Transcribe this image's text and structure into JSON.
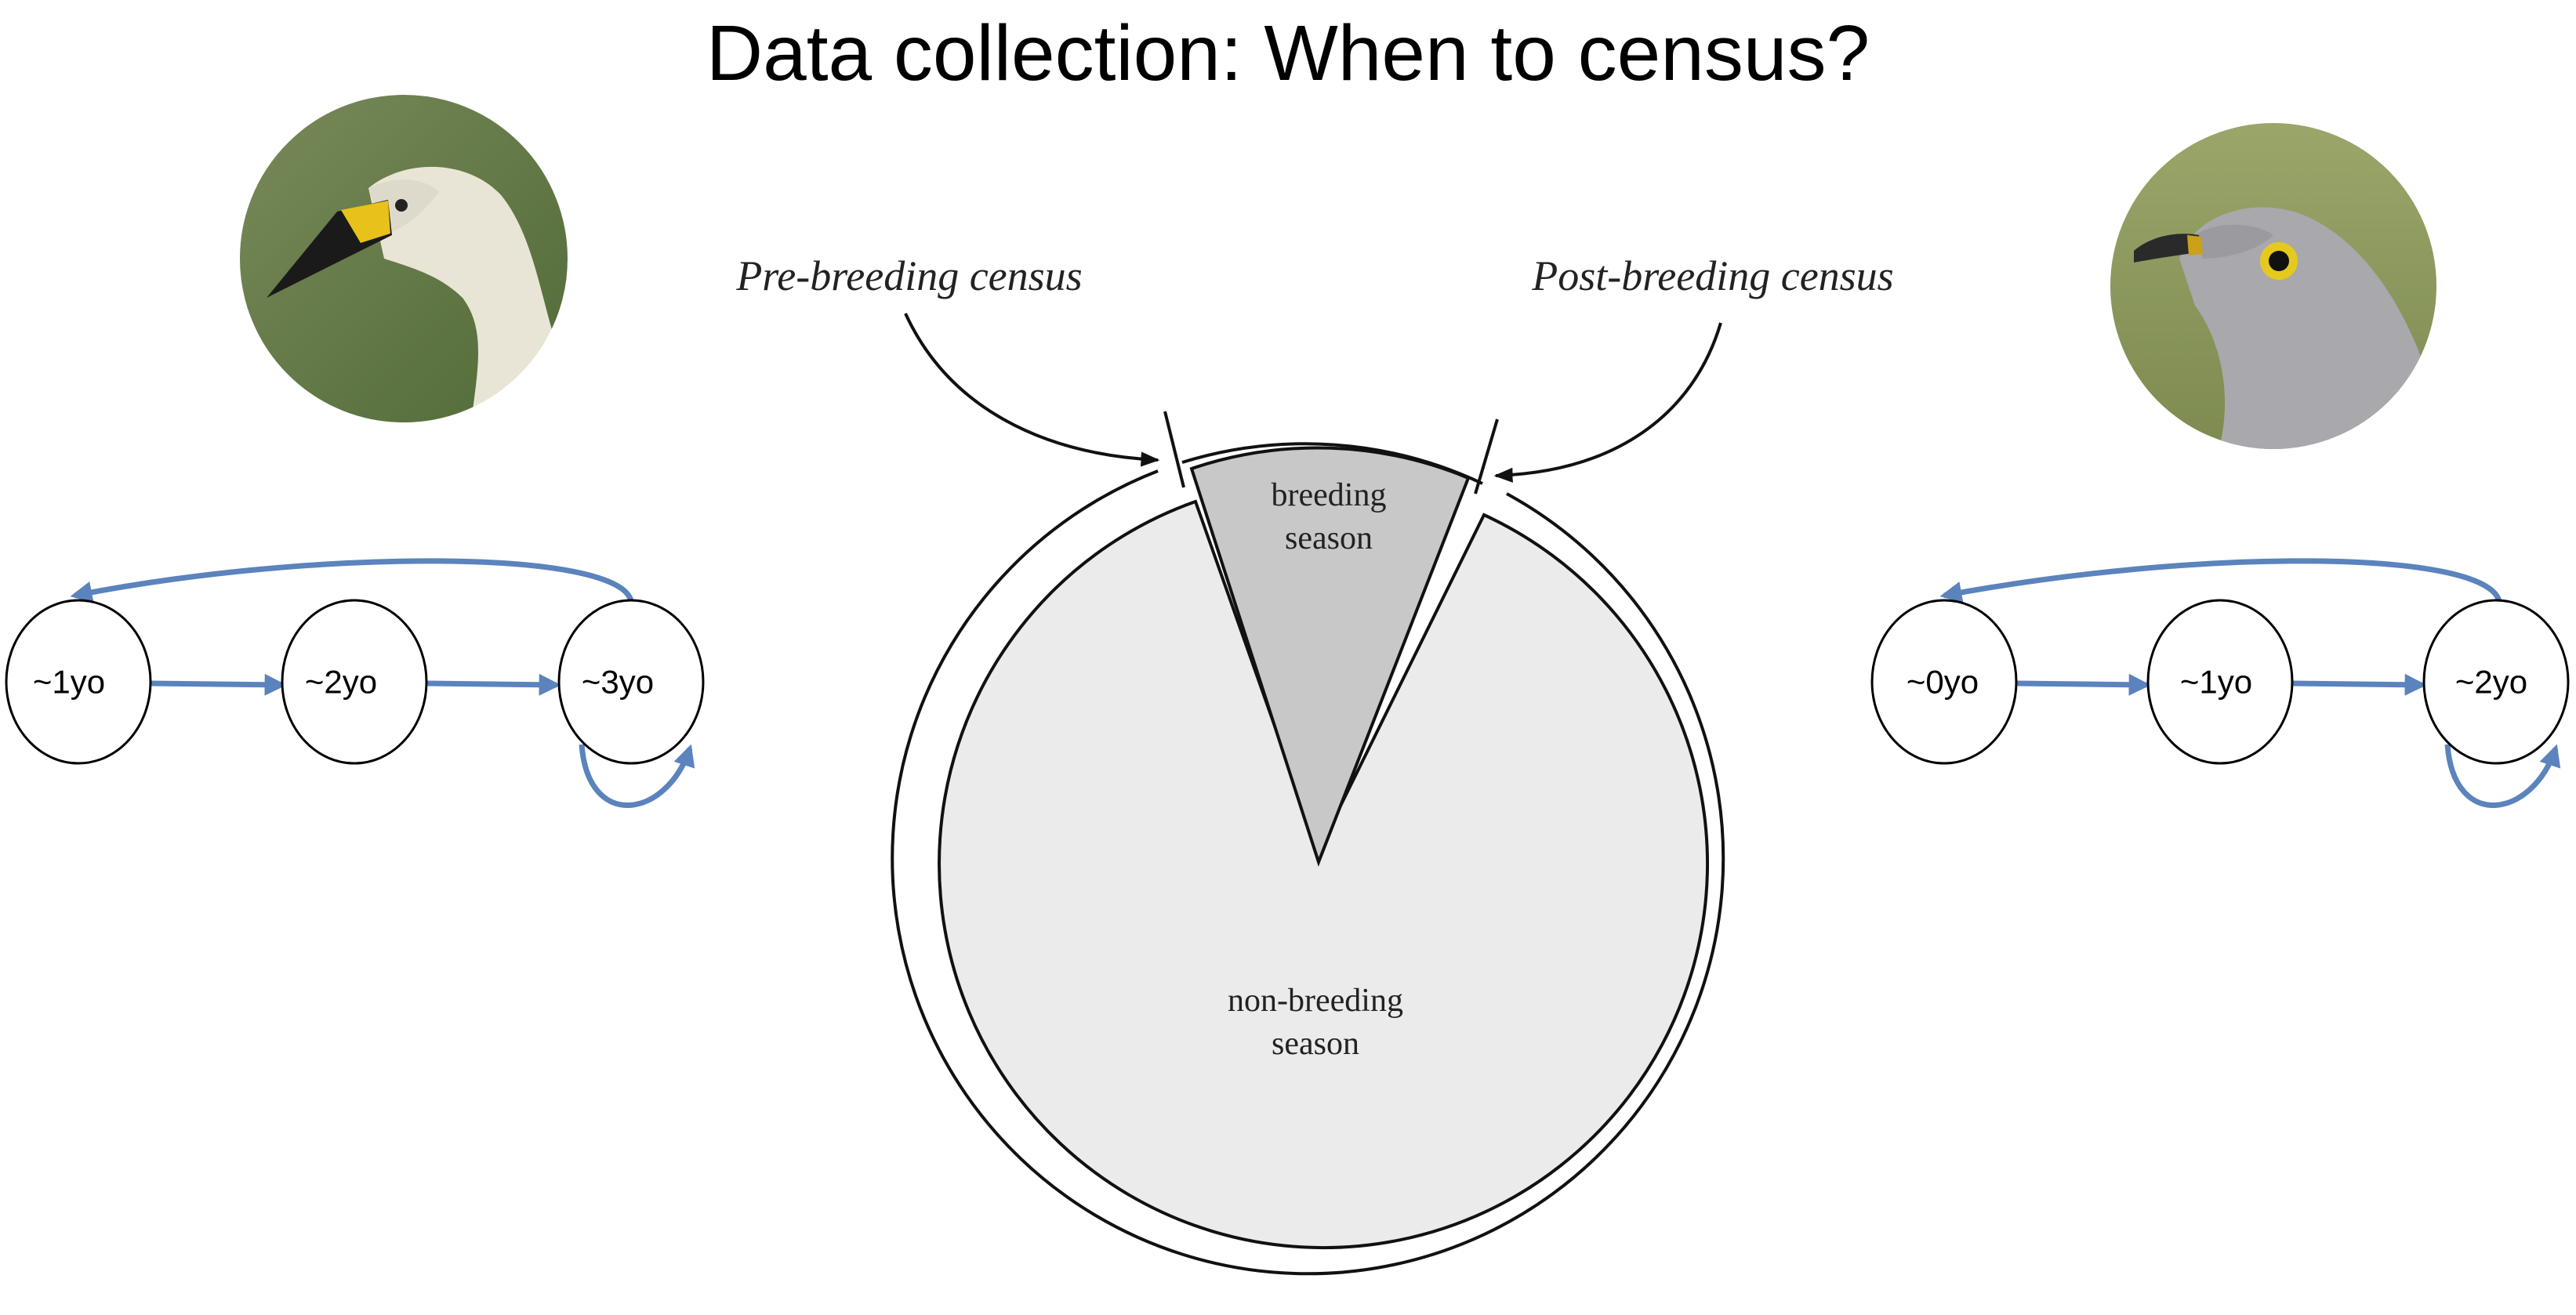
{
  "slide": {
    "title": "Data collection: When to census?"
  },
  "colors": {
    "arrow_blue": "#5b83bd",
    "breeding_fill": "#c8c8c8",
    "nonbreeding_fill": "#ebebeb",
    "outline": "#111111"
  },
  "census": {
    "pre_label": "Pre-breeding census",
    "post_label": "Post-breeding census"
  },
  "seasons": {
    "breeding_line1": "breeding",
    "breeding_line2": "season",
    "nonbreeding_line1": "non-breeding",
    "nonbreeding_line2": "season"
  },
  "left_cycle": {
    "photo_icon": "swan-photo-icon",
    "stages": [
      "~1yo",
      "~2yo",
      "~3yo"
    ]
  },
  "right_cycle": {
    "photo_icon": "cuckoo-photo-icon",
    "stages": [
      "~0yo",
      "~1yo",
      "~2yo"
    ]
  }
}
